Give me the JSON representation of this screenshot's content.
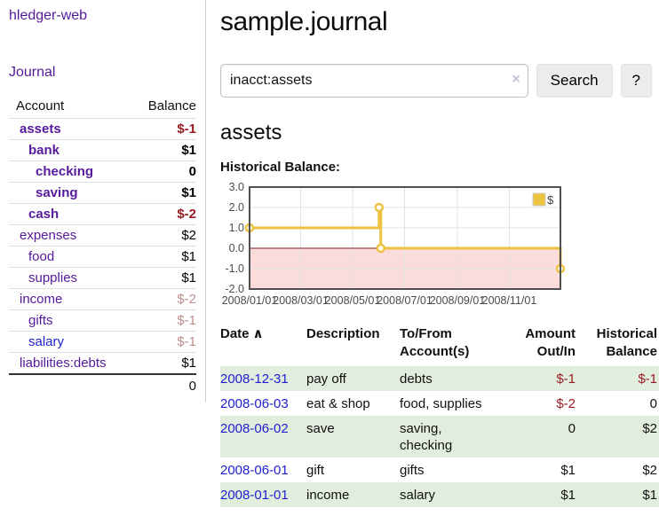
{
  "app": {
    "title": "hledger-web"
  },
  "colors": {
    "link_purple": "#551a9b",
    "link_blue": "#1e1ed2",
    "negative": "#9a1b24",
    "negative_faded": "#bf8f8f",
    "row_green": "#e2eedd",
    "series_gold": "#edc240"
  },
  "sidebar": {
    "nav_journal": "Journal",
    "accounts_table": {
      "header_account": "Account",
      "header_balance": "Balance",
      "rows": [
        {
          "name": "assets",
          "indent": 1,
          "bold": true,
          "balance": "$-1",
          "balance_style": "neg"
        },
        {
          "name": "bank",
          "indent": 2,
          "bold": true,
          "balance": "$1",
          "balance_style": "pos"
        },
        {
          "name": "checking",
          "indent": 3,
          "bold": true,
          "balance": "0",
          "balance_style": "pos"
        },
        {
          "name": "saving",
          "indent": 3,
          "bold": true,
          "balance": "$1",
          "balance_style": "pos"
        },
        {
          "name": "cash",
          "indent": 2,
          "bold": true,
          "balance": "$-2",
          "balance_style": "neg"
        },
        {
          "name": "expenses",
          "indent": 1,
          "bold": false,
          "balance": "$2",
          "balance_style": "pos"
        },
        {
          "name": "food",
          "indent": 2,
          "bold": false,
          "balance": "$1",
          "balance_style": "pos"
        },
        {
          "name": "supplies",
          "indent": 2,
          "bold": false,
          "balance": "$1",
          "balance_style": "pos"
        },
        {
          "name": "income",
          "indent": 1,
          "bold": false,
          "balance": "$-2",
          "balance_style": "neg-faded"
        },
        {
          "name": "gifts",
          "indent": 2,
          "bold": false,
          "balance": "$-1",
          "balance_style": "neg-faded"
        },
        {
          "name": "salary",
          "indent": 2,
          "bold": false,
          "link_style": "unvisited",
          "balance": "$-1",
          "balance_style": "neg-faded"
        },
        {
          "name": "liabilities:debts",
          "indent": 1,
          "bold": false,
          "balance": "$1",
          "balance_style": "pos"
        }
      ],
      "total": "0"
    }
  },
  "main": {
    "title": "sample.journal",
    "search": {
      "value": "inacct:assets",
      "clear_icon": "×",
      "button_label": "Search",
      "help_label": "?"
    },
    "account_heading": "assets",
    "chart_label": "Historical Balance:",
    "register_table": {
      "headers": [
        {
          "label": "Date",
          "sort_icon": "∧",
          "align": "left"
        },
        {
          "label": "Description",
          "align": "left"
        },
        {
          "label": "To/From Account(s)",
          "align": "left"
        },
        {
          "label": "Amount Out/In",
          "align": "right"
        },
        {
          "label": "Historical Balance",
          "align": "right"
        }
      ],
      "rows": [
        {
          "date": "2008-12-31",
          "description": "pay off",
          "accounts": "debts",
          "amount": "$-1",
          "amount_neg": true,
          "balance": "$-1",
          "balance_neg": true,
          "shaded": true
        },
        {
          "date": "2008-06-03",
          "description": "eat & shop",
          "accounts": "food, supplies",
          "amount": "$-2",
          "amount_neg": true,
          "balance": "0",
          "balance_neg": false,
          "shaded": false
        },
        {
          "date": "2008-06-02",
          "description": "save",
          "accounts": "saving, checking",
          "amount": "0",
          "amount_neg": false,
          "balance": "$2",
          "balance_neg": false,
          "shaded": true
        },
        {
          "date": "2008-06-01",
          "description": "gift",
          "accounts": "gifts",
          "amount": "$1",
          "amount_neg": false,
          "balance": "$2",
          "balance_neg": false,
          "shaded": false
        },
        {
          "date": "2008-01-01",
          "description": "income",
          "accounts": "salary",
          "amount": "$1",
          "amount_neg": false,
          "balance": "$1",
          "balance_neg": false,
          "shaded": true
        }
      ]
    }
  },
  "chart_data": {
    "type": "line",
    "title": "Historical Balance:",
    "step": true,
    "series": [
      {
        "name": "$",
        "color": "#edc240",
        "points": [
          [
            "2008-01-01",
            1
          ],
          [
            "2008-06-01",
            2
          ],
          [
            "2008-06-03",
            0
          ],
          [
            "2008-12-31",
            -1
          ]
        ]
      }
    ],
    "x_range": [
      "2008-01-01",
      "2008-12-31"
    ],
    "x_ticks": [
      "2008/01/01",
      "2008/03/01",
      "2008/05/01",
      "2008/07/01",
      "2008/09/01",
      "2008/11/01"
    ],
    "y_ticks": [
      "3.0",
      "2.0",
      "1.0",
      "0.0",
      "-1.0",
      "-2.0"
    ],
    "ylim": [
      -2,
      3
    ],
    "grid": true,
    "legend_position": "top-right",
    "negative_region_fill": "#fadcdc",
    "zero_line_color": "#8b1a1a"
  }
}
